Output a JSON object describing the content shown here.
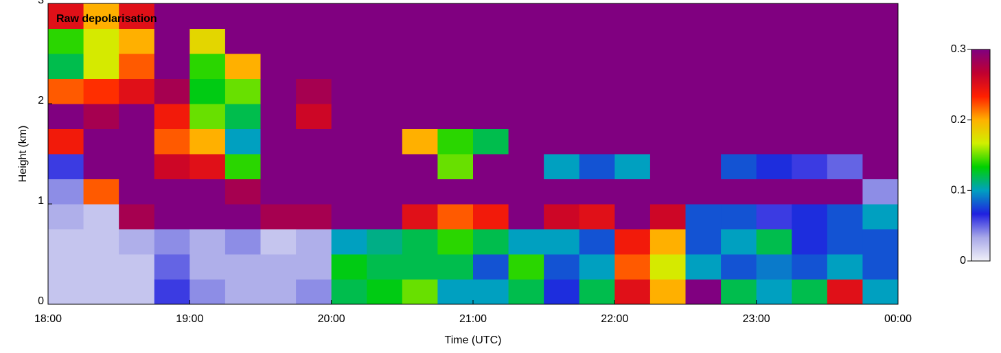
{
  "chart_data": {
    "type": "heatmap",
    "title": "Raw depolarisation",
    "x_label": "Time (UTC)",
    "y_label": "Height (km)",
    "xlim": [
      18,
      24
    ],
    "xticks": [
      {
        "value": 18,
        "label": "18:00"
      },
      {
        "value": 19,
        "label": "19:00"
      },
      {
        "value": 20,
        "label": "20:00"
      },
      {
        "value": 21,
        "label": "21:00"
      },
      {
        "value": 22,
        "label": "22:00"
      },
      {
        "value": 23,
        "label": "23:00"
      },
      {
        "value": 24,
        "label": "00:00"
      }
    ],
    "ylim": [
      0,
      3
    ],
    "yticks": [
      0,
      1,
      2,
      3
    ],
    "colorbar": {
      "clim": [
        0,
        0.3
      ],
      "ticks": [
        0,
        0.1,
        0.2,
        0.3
      ],
      "colors": [
        "#f0f0f8",
        "#a8a8e8",
        "#2020e0",
        "#00a0c0",
        "#00d000",
        "#d0f000",
        "#ffb000",
        "#ff2000",
        "#c00030",
        "#800080"
      ]
    },
    "z": [
      [
        0.02,
        0.02,
        0.02,
        0.03,
        0.04,
        0.06,
        0.24,
        0.3,
        0.22,
        0.12,
        0.14,
        0.25
      ],
      [
        0.02,
        0.02,
        0.02,
        0.02,
        0.22,
        0.3,
        0.3,
        0.28,
        0.23,
        0.17,
        0.17,
        0.2
      ],
      [
        0.02,
        0.02,
        0.03,
        0.28,
        0.3,
        0.3,
        0.3,
        0.3,
        0.25,
        0.22,
        0.2,
        0.25
      ],
      [
        0.06,
        0.05,
        0.04,
        0.3,
        0.3,
        0.26,
        0.22,
        0.24,
        0.28,
        0.3,
        0.3,
        0.3
      ],
      [
        0.04,
        0.03,
        0.03,
        0.3,
        0.3,
        0.25,
        0.2,
        0.15,
        0.13,
        0.14,
        0.18,
        0.3
      ],
      [
        0.03,
        0.03,
        0.04,
        0.3,
        0.28,
        0.14,
        0.1,
        0.12,
        0.15,
        0.2,
        0.3,
        0.3
      ],
      [
        0.03,
        0.03,
        0.02,
        0.28,
        0.3,
        0.3,
        0.3,
        0.3,
        0.3,
        0.3,
        0.3,
        0.3
      ],
      [
        0.04,
        0.03,
        0.03,
        0.28,
        0.3,
        0.3,
        0.3,
        0.26,
        0.28,
        0.3,
        0.3,
        0.3
      ],
      [
        0.12,
        0.13,
        0.1,
        0.3,
        0.3,
        0.3,
        0.3,
        0.3,
        0.3,
        0.3,
        0.3,
        0.3
      ],
      [
        0.13,
        0.12,
        0.11,
        0.3,
        0.3,
        0.3,
        0.3,
        0.3,
        0.3,
        0.3,
        0.3,
        0.3
      ],
      [
        0.15,
        0.12,
        0.12,
        0.25,
        0.3,
        0.3,
        0.2,
        0.3,
        0.3,
        0.3,
        0.3,
        0.3
      ],
      [
        0.1,
        0.12,
        0.14,
        0.22,
        0.3,
        0.15,
        0.14,
        0.3,
        0.3,
        0.3,
        0.3,
        0.3
      ],
      [
        0.1,
        0.08,
        0.12,
        0.24,
        0.3,
        0.3,
        0.12,
        0.3,
        0.3,
        0.3,
        0.3,
        0.3
      ],
      [
        0.12,
        0.14,
        0.1,
        0.3,
        0.3,
        0.3,
        0.3,
        0.3,
        0.3,
        0.3,
        0.3,
        0.3
      ],
      [
        0.07,
        0.08,
        0.1,
        0.26,
        0.3,
        0.1,
        0.3,
        0.3,
        0.3,
        0.3,
        0.3,
        0.3
      ],
      [
        0.12,
        0.1,
        0.08,
        0.25,
        0.3,
        0.08,
        0.3,
        0.3,
        0.3,
        0.3,
        0.3,
        0.3
      ],
      [
        0.25,
        0.22,
        0.24,
        0.3,
        0.3,
        0.1,
        0.3,
        0.3,
        0.3,
        0.3,
        0.3,
        0.3
      ],
      [
        0.2,
        0.17,
        0.2,
        0.26,
        0.3,
        0.3,
        0.3,
        0.3,
        0.3,
        0.3,
        0.3,
        0.3
      ],
      [
        0.3,
        0.1,
        0.08,
        0.08,
        0.3,
        0.3,
        0.3,
        0.3,
        0.3,
        0.3,
        0.3,
        0.3
      ],
      [
        0.12,
        0.08,
        0.1,
        0.08,
        0.3,
        0.08,
        0.3,
        0.3,
        0.3,
        0.3,
        0.3,
        0.3
      ],
      [
        0.1,
        0.09,
        0.12,
        0.06,
        0.3,
        0.07,
        0.3,
        0.3,
        0.3,
        0.3,
        0.3,
        0.3
      ],
      [
        0.12,
        0.08,
        0.07,
        0.07,
        0.3,
        0.06,
        0.3,
        0.3,
        0.3,
        0.3,
        0.3,
        0.3
      ],
      [
        0.25,
        0.1,
        0.08,
        0.08,
        0.3,
        0.05,
        0.3,
        0.3,
        0.3,
        0.3,
        0.3,
        0.3
      ],
      [
        0.1,
        0.08,
        0.08,
        0.1,
        0.04,
        0.3,
        0.3,
        0.3,
        0.3,
        0.3,
        0.3,
        0.3
      ]
    ]
  }
}
